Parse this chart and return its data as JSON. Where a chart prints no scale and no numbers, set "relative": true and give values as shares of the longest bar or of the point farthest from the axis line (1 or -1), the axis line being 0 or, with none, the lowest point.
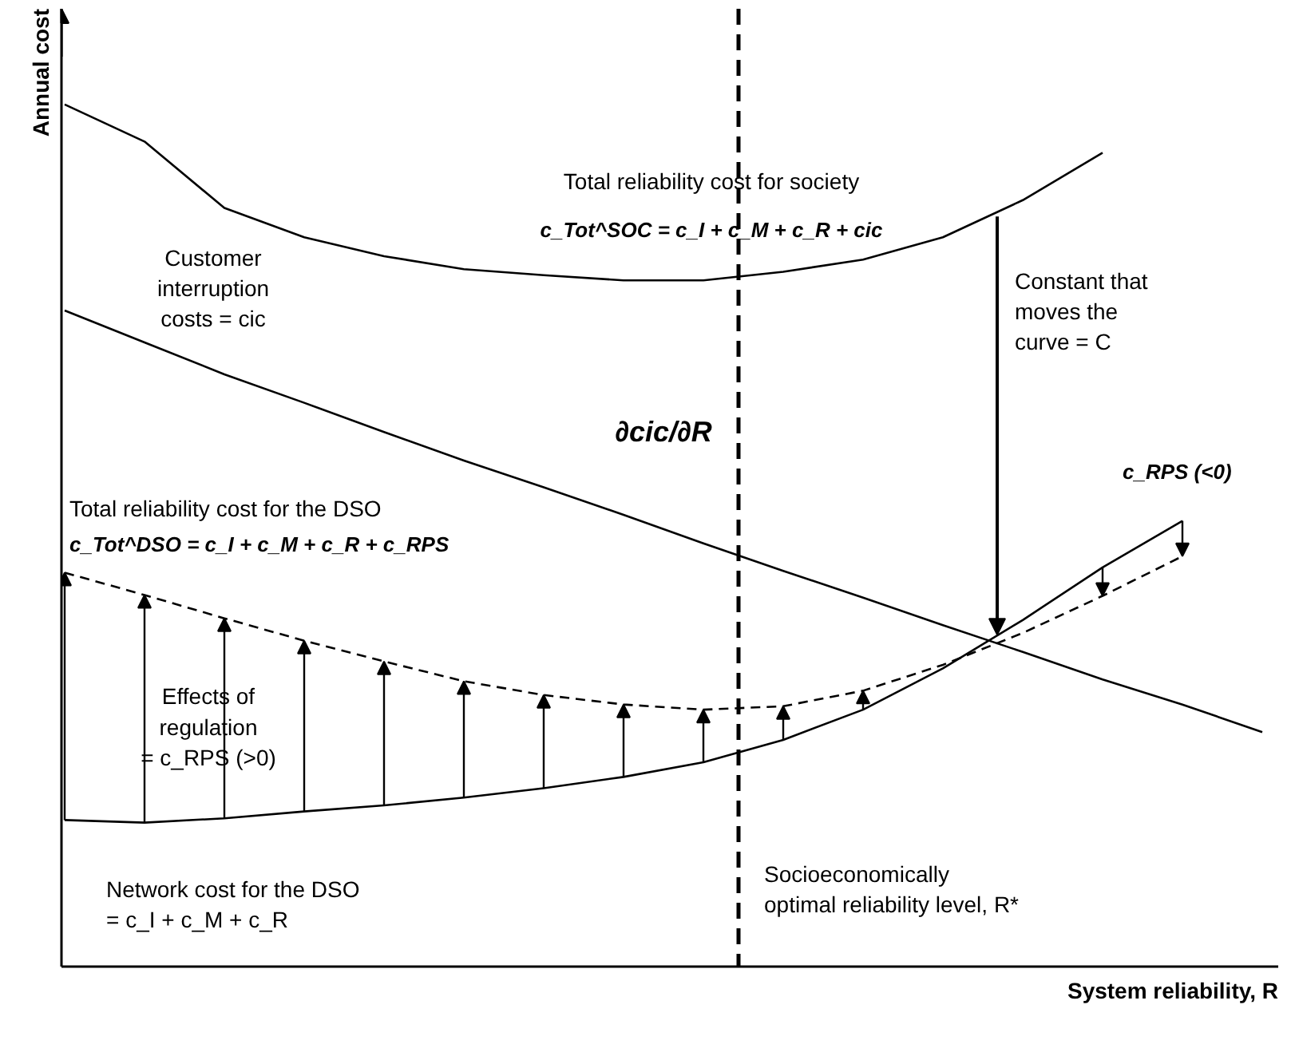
{
  "chart_data": {
    "type": "line",
    "relative": true,
    "xlabel": "System reliability, R",
    "ylabel": "Annual cost",
    "categories": [
      null,
      null,
      null,
      null,
      null,
      null,
      null,
      null,
      null,
      null,
      null,
      null,
      null,
      null,
      null,
      null
    ],
    "series": [
      {
        "color": "#000000",
        "line_style": "solid",
        "values": [
          1.0,
          0.957,
          0.88,
          0.846,
          0.824,
          0.809,
          0.802,
          0.796,
          0.796,
          0.806,
          0.82,
          0.846,
          0.889,
          0.944,
          null,
          null
        ]
      },
      {
        "color": "#000000",
        "line_style": "solid",
        "values": [
          0.761,
          0.724,
          0.687,
          0.654,
          0.62,
          0.587,
          0.556,
          0.524,
          0.491,
          0.459,
          0.428,
          0.396,
          0.365,
          0.333,
          0.304,
          0.272
        ]
      },
      {
        "color": "#000000",
        "line_style": "solid",
        "values": [
          0.17,
          0.167,
          0.172,
          0.18,
          0.187,
          0.196,
          0.207,
          0.22,
          0.237,
          0.263,
          0.298,
          0.346,
          0.402,
          0.463,
          0.517,
          null
        ]
      },
      {
        "color": "#000000",
        "line_style": "dashed",
        "values": [
          0.457,
          0.431,
          0.404,
          0.378,
          0.354,
          0.331,
          0.315,
          0.304,
          0.298,
          0.302,
          0.32,
          0.35,
          0.387,
          0.43,
          0.476,
          null
        ]
      }
    ],
    "annotations": [
      "Total reliability cost for society",
      "c_Tot^SOC = c_I + c_M + c_R + cic",
      "Customer\ninterruption\ncosts = cic",
      "Total reliability cost for the DSO",
      "c_Tot^DSO = c_I + c_M + c_R + c_RPS",
      "∂cic/∂R",
      "Constant that\nmoves the\ncurve = C",
      "c_RPS (<0)",
      "Effects of\nregulation\n= c_RPS (>0)",
      "Network cost for the DSO\n= c_I + c_M + c_R",
      "Socioeconomically\noptimal reliability level, R*"
    ]
  }
}
